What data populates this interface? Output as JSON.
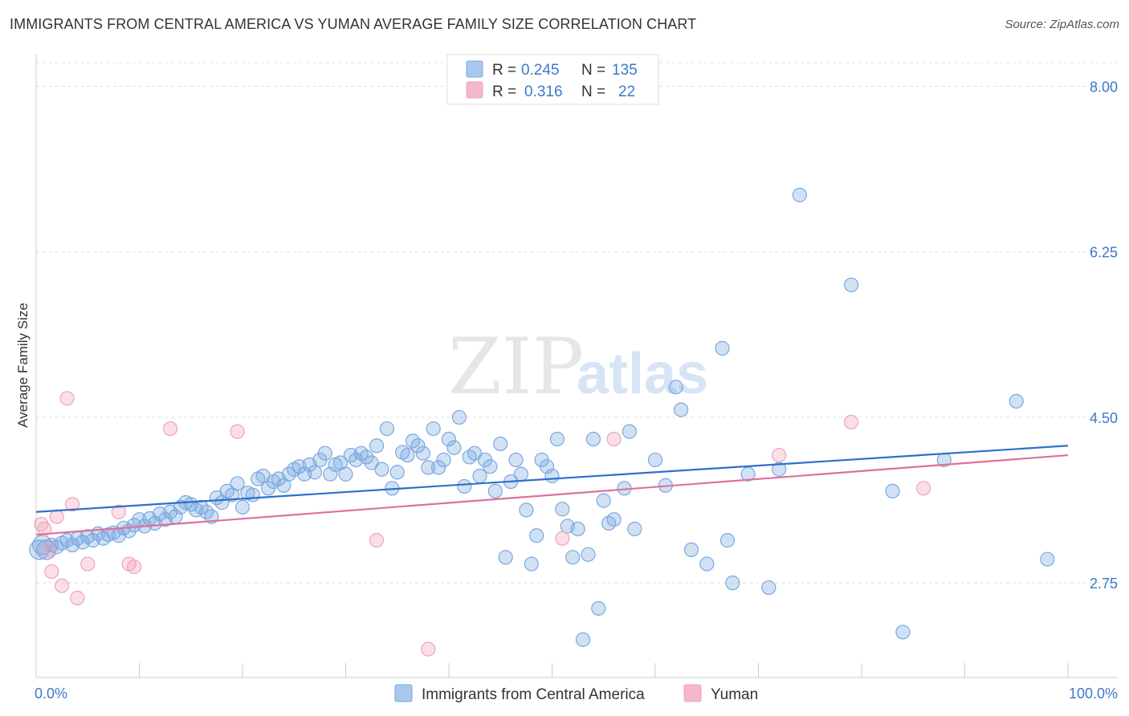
{
  "title": "IMMIGRANTS FROM CENTRAL AMERICA VS YUMAN AVERAGE FAMILY SIZE CORRELATION CHART",
  "source": "Source: ZipAtlas.com",
  "watermark": {
    "zip": "ZIP",
    "atlas": "atlas"
  },
  "legend_top": [
    {
      "r_label": "R =",
      "r_value": "0.245",
      "n_label": "N =",
      "n_value": "135",
      "color": "#a8c8f0"
    },
    {
      "r_label": "R =",
      "r_value": "0.316",
      "n_label": "N =",
      "n_value": "22",
      "color": "#f5b8cb"
    }
  ],
  "legend_bottom": [
    {
      "label": "Immigrants from Central America",
      "color": "#a8c8f0"
    },
    {
      "label": "Yuman",
      "color": "#f5b8cb"
    }
  ],
  "chart_data": {
    "type": "scatter",
    "title": "IMMIGRANTS FROM CENTRAL AMERICA VS YUMAN AVERAGE FAMILY SIZE CORRELATION CHART",
    "xlabel": "",
    "ylabel": "Average Family Size",
    "xlim": [
      0,
      100
    ],
    "ylim": [
      1.75,
      8.25
    ],
    "x_tick_labels": [
      "0.0%",
      "100.0%"
    ],
    "y_ticks": [
      2.75,
      4.5,
      6.25,
      8.0
    ],
    "y_tick_labels": [
      "2.75",
      "4.50",
      "6.25",
      "8.00"
    ],
    "grid": "horizontal dashed",
    "legend_position": "top-center",
    "series": [
      {
        "name": "Immigrants from Central America",
        "color": "#7aa8e0",
        "line_color": "#2f6fcb",
        "trend": [
          [
            0,
            3.5
          ],
          [
            100,
            4.2
          ]
        ],
        "points": [
          [
            0.3,
            3.1
          ],
          [
            0.6,
            3.15
          ],
          [
            1,
            3.1
          ],
          [
            1.5,
            3.15
          ],
          [
            2,
            3.13
          ],
          [
            2.5,
            3.17
          ],
          [
            3,
            3.2
          ],
          [
            3.5,
            3.15
          ],
          [
            4,
            3.22
          ],
          [
            4.5,
            3.18
          ],
          [
            5,
            3.24
          ],
          [
            5.5,
            3.2
          ],
          [
            6,
            3.27
          ],
          [
            6.5,
            3.22
          ],
          [
            7,
            3.26
          ],
          [
            7.5,
            3.28
          ],
          [
            8,
            3.25
          ],
          [
            8.5,
            3.33
          ],
          [
            9,
            3.3
          ],
          [
            9.5,
            3.36
          ],
          [
            10,
            3.42
          ],
          [
            10.5,
            3.35
          ],
          [
            11,
            3.43
          ],
          [
            11.5,
            3.38
          ],
          [
            12,
            3.48
          ],
          [
            12.5,
            3.42
          ],
          [
            13,
            3.5
          ],
          [
            13.5,
            3.45
          ],
          [
            14,
            3.55
          ],
          [
            14.5,
            3.6
          ],
          [
            15,
            3.58
          ],
          [
            15.5,
            3.52
          ],
          [
            16,
            3.55
          ],
          [
            16.5,
            3.5
          ],
          [
            17,
            3.45
          ],
          [
            17.5,
            3.65
          ],
          [
            18,
            3.6
          ],
          [
            18.5,
            3.72
          ],
          [
            19,
            3.68
          ],
          [
            19.5,
            3.8
          ],
          [
            20,
            3.55
          ],
          [
            20.5,
            3.7
          ],
          [
            21,
            3.68
          ],
          [
            21.5,
            3.85
          ],
          [
            22,
            3.88
          ],
          [
            22.5,
            3.75
          ],
          [
            23,
            3.82
          ],
          [
            23.5,
            3.85
          ],
          [
            24,
            3.78
          ],
          [
            24.5,
            3.9
          ],
          [
            25,
            3.95
          ],
          [
            25.5,
            3.98
          ],
          [
            26,
            3.9
          ],
          [
            26.5,
            4.0
          ],
          [
            27,
            3.92
          ],
          [
            27.5,
            4.05
          ],
          [
            28,
            4.12
          ],
          [
            28.5,
            3.9
          ],
          [
            29,
            4.0
          ],
          [
            29.5,
            4.02
          ],
          [
            30,
            3.9
          ],
          [
            30.5,
            4.1
          ],
          [
            31,
            4.05
          ],
          [
            31.5,
            4.12
          ],
          [
            32,
            4.08
          ],
          [
            32.5,
            4.02
          ],
          [
            33,
            4.2
          ],
          [
            33.5,
            3.95
          ],
          [
            34,
            4.38
          ],
          [
            34.5,
            3.75
          ],
          [
            35,
            3.92
          ],
          [
            35.5,
            4.13
          ],
          [
            36,
            4.1
          ],
          [
            36.5,
            4.25
          ],
          [
            37,
            4.2
          ],
          [
            37.5,
            4.12
          ],
          [
            38,
            3.97
          ],
          [
            38.5,
            4.38
          ],
          [
            39,
            3.97
          ],
          [
            39.5,
            4.05
          ],
          [
            40,
            4.27
          ],
          [
            40.5,
            4.18
          ],
          [
            41,
            4.5
          ],
          [
            41.5,
            3.77
          ],
          [
            42,
            4.08
          ],
          [
            42.5,
            4.12
          ],
          [
            43,
            3.88
          ],
          [
            43.5,
            4.05
          ],
          [
            44,
            3.98
          ],
          [
            44.5,
            3.72
          ],
          [
            45,
            4.22
          ],
          [
            45.5,
            3.02
          ],
          [
            46,
            3.82
          ],
          [
            46.5,
            4.05
          ],
          [
            47,
            3.9
          ],
          [
            47.5,
            3.52
          ],
          [
            48,
            2.95
          ],
          [
            48.5,
            3.25
          ],
          [
            49,
            4.05
          ],
          [
            49.5,
            3.98
          ],
          [
            50,
            3.88
          ],
          [
            50.5,
            4.27
          ],
          [
            51,
            3.53
          ],
          [
            51.5,
            3.35
          ],
          [
            52,
            3.02
          ],
          [
            52.5,
            3.32
          ],
          [
            53,
            2.15
          ],
          [
            53.5,
            3.05
          ],
          [
            54,
            4.27
          ],
          [
            54.5,
            2.48
          ],
          [
            55,
            3.62
          ],
          [
            55.5,
            3.38
          ],
          [
            56,
            3.42
          ],
          [
            57,
            3.75
          ],
          [
            57.5,
            4.35
          ],
          [
            58,
            3.32
          ],
          [
            60,
            4.05
          ],
          [
            61,
            3.78
          ],
          [
            62,
            4.82
          ],
          [
            62.5,
            4.58
          ],
          [
            63.5,
            3.1
          ],
          [
            65,
            2.95
          ],
          [
            66.5,
            5.23
          ],
          [
            67,
            3.2
          ],
          [
            67.5,
            2.75
          ],
          [
            69,
            3.9
          ],
          [
            71,
            2.7
          ],
          [
            72,
            3.95
          ],
          [
            74,
            6.85
          ],
          [
            79,
            5.9
          ],
          [
            83,
            3.72
          ],
          [
            84,
            2.23
          ],
          [
            88,
            4.05
          ],
          [
            95,
            4.67
          ],
          [
            98,
            3.0
          ]
        ]
      },
      {
        "name": "Yuman",
        "color": "#f0a3bb",
        "line_color": "#e0709a",
        "trend": [
          [
            0,
            3.26
          ],
          [
            100,
            4.1
          ]
        ],
        "points": [
          [
            0.5,
            3.37
          ],
          [
            0.8,
            3.32
          ],
          [
            1.5,
            2.87
          ],
          [
            2,
            3.45
          ],
          [
            2.5,
            2.72
          ],
          [
            3,
            4.7
          ],
          [
            3.5,
            3.58
          ],
          [
            4,
            2.59
          ],
          [
            5,
            2.95
          ],
          [
            8,
            3.5
          ],
          [
            9,
            2.95
          ],
          [
            9.5,
            2.92
          ],
          [
            13,
            4.38
          ],
          [
            19.5,
            4.35
          ],
          [
            33,
            3.2
          ],
          [
            38,
            2.05
          ],
          [
            51,
            3.22
          ],
          [
            56,
            4.27
          ],
          [
            72,
            4.1
          ],
          [
            79,
            4.45
          ],
          [
            86,
            3.75
          ],
          [
            1.2,
            3.1
          ]
        ]
      }
    ]
  }
}
